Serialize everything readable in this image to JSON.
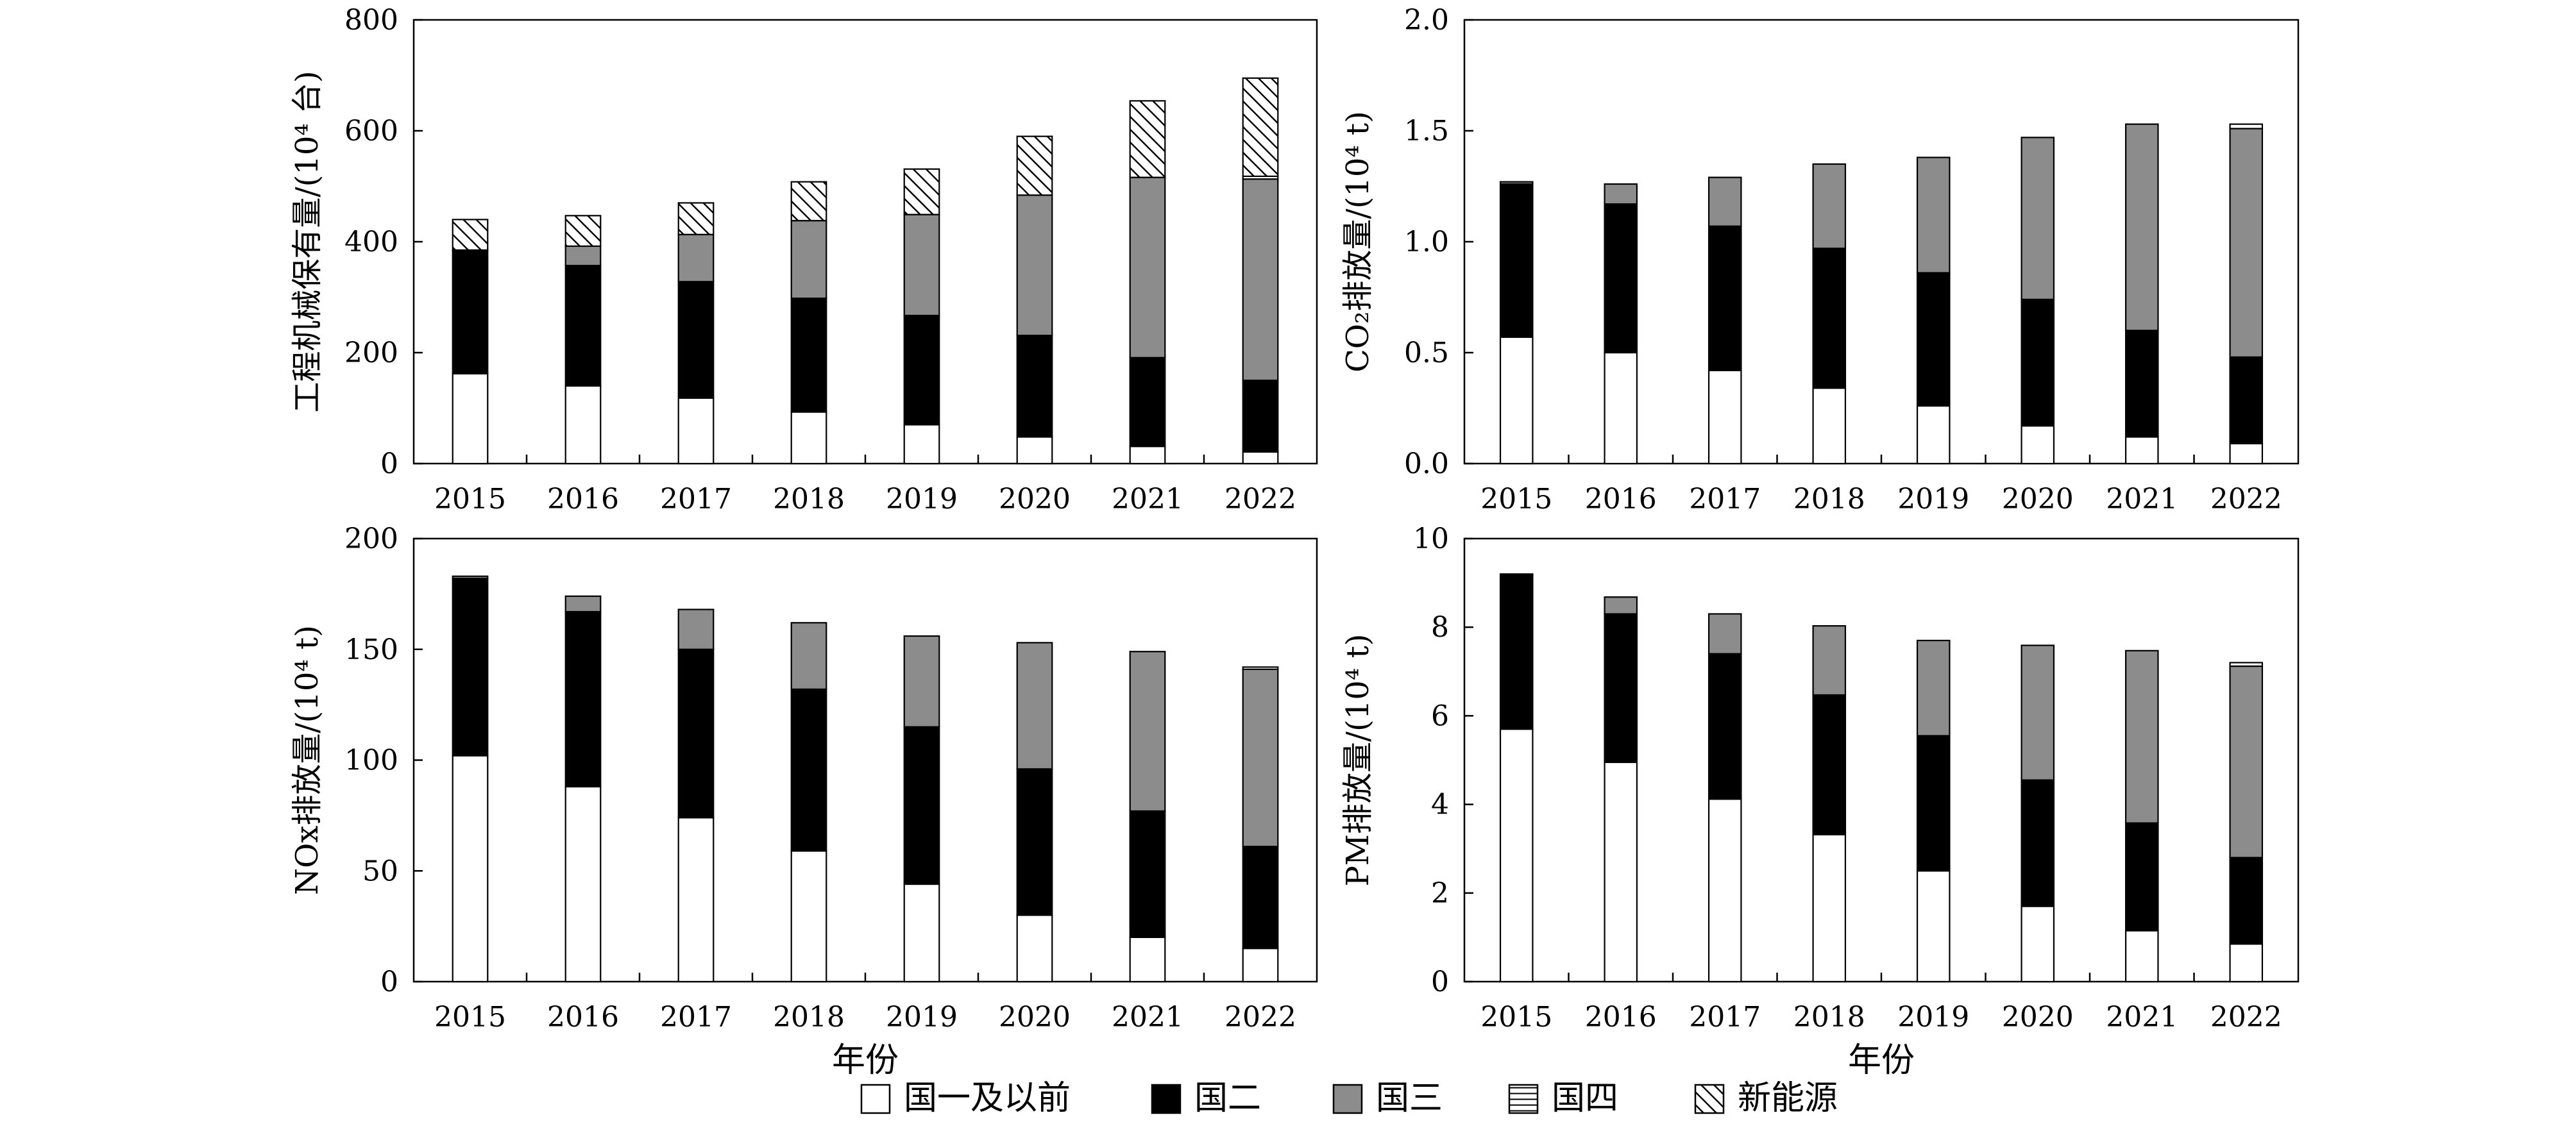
{
  "chart_data": [
    {
      "type": "bar",
      "stacked": true,
      "ylabel": "工程机械保有量/(10⁴ 台)",
      "ylim": [
        0,
        800
      ],
      "yticks": [
        "0",
        "200",
        "400",
        "600",
        "800"
      ],
      "categories": [
        "2015",
        "2016",
        "2017",
        "2018",
        "2019",
        "2020",
        "2021",
        "2022"
      ],
      "series": [
        {
          "name": "国一及以前",
          "values": [
            162,
            140,
            118,
            93,
            70,
            48,
            31,
            21
          ]
        },
        {
          "name": "国二",
          "values": [
            223,
            217,
            210,
            205,
            197,
            183,
            160,
            129
          ]
        },
        {
          "name": "国三",
          "values": [
            0,
            35,
            85,
            140,
            182,
            253,
            325,
            363
          ]
        },
        {
          "name": "国四",
          "values": [
            0,
            0,
            0,
            0,
            0,
            0,
            0,
            5
          ]
        },
        {
          "name": "新能源",
          "values": [
            55,
            55,
            57,
            70,
            82,
            106,
            138,
            177
          ]
        }
      ],
      "xlabel": ""
    },
    {
      "type": "bar",
      "stacked": true,
      "ylabel": "CO₂排放量/(10⁴ t)",
      "ylim": [
        0,
        2.0
      ],
      "yticks": [
        "0.0",
        "0.5",
        "1.0",
        "1.5",
        "2.0"
      ],
      "categories": [
        "2015",
        "2016",
        "2017",
        "2018",
        "2019",
        "2020",
        "2021",
        "2022"
      ],
      "series": [
        {
          "name": "国一及以前",
          "values": [
            0.57,
            0.5,
            0.42,
            0.34,
            0.26,
            0.17,
            0.12,
            0.09
          ]
        },
        {
          "name": "国二",
          "values": [
            0.69,
            0.67,
            0.65,
            0.63,
            0.6,
            0.57,
            0.48,
            0.39
          ]
        },
        {
          "name": "国三",
          "values": [
            0.01,
            0.09,
            0.22,
            0.38,
            0.52,
            0.73,
            0.93,
            1.03
          ]
        },
        {
          "name": "国四",
          "values": [
            0,
            0,
            0,
            0,
            0,
            0,
            0,
            0.02
          ]
        },
        {
          "name": "新能源",
          "values": [
            0,
            0,
            0,
            0,
            0,
            0,
            0,
            0
          ]
        }
      ],
      "xlabel": ""
    },
    {
      "type": "bar",
      "stacked": true,
      "ylabel": "NOx排放量/(10⁴ t)",
      "ylim": [
        0,
        200
      ],
      "yticks": [
        "0",
        "50",
        "100",
        "150",
        "200"
      ],
      "categories": [
        "2015",
        "2016",
        "2017",
        "2018",
        "2019",
        "2020",
        "2021",
        "2022"
      ],
      "series": [
        {
          "name": "国一及以前",
          "values": [
            102,
            88,
            74,
            59,
            44,
            30,
            20,
            15
          ]
        },
        {
          "name": "国二",
          "values": [
            80,
            79,
            76,
            73,
            71,
            66,
            57,
            46
          ]
        },
        {
          "name": "国三",
          "values": [
            1,
            7,
            18,
            30,
            41,
            57,
            72,
            80
          ]
        },
        {
          "name": "国四",
          "values": [
            0,
            0,
            0,
            0,
            0,
            0,
            0,
            1
          ]
        },
        {
          "name": "新能源",
          "values": [
            0,
            0,
            0,
            0,
            0,
            0,
            0,
            0
          ]
        }
      ],
      "xlabel": "年份"
    },
    {
      "type": "bar",
      "stacked": true,
      "ylabel": "PM排放量/(10⁴ t)",
      "ylim": [
        0,
        10
      ],
      "yticks": [
        "0",
        "2",
        "4",
        "6",
        "8",
        "10"
      ],
      "categories": [
        "2015",
        "2016",
        "2017",
        "2018",
        "2019",
        "2020",
        "2021",
        "2022"
      ],
      "series": [
        {
          "name": "国一及以前",
          "values": [
            5.7,
            4.95,
            4.12,
            3.32,
            2.5,
            1.7,
            1.15,
            0.85
          ]
        },
        {
          "name": "国二",
          "values": [
            3.48,
            3.35,
            3.28,
            3.15,
            3.05,
            2.85,
            2.43,
            1.95
          ]
        },
        {
          "name": "国三",
          "values": [
            0.02,
            0.38,
            0.9,
            1.56,
            2.15,
            3.04,
            3.89,
            4.32
          ]
        },
        {
          "name": "国四",
          "values": [
            0,
            0,
            0,
            0,
            0,
            0,
            0,
            0.08
          ]
        },
        {
          "name": "新能源",
          "values": [
            0,
            0,
            0,
            0,
            0,
            0,
            0,
            0
          ]
        }
      ],
      "xlabel": "年份"
    }
  ],
  "legend": [
    {
      "name": "国一及以前",
      "style": "white"
    },
    {
      "name": "国二",
      "style": "black"
    },
    {
      "name": "国三",
      "style": "gray"
    },
    {
      "name": "国四",
      "style": "hlines"
    },
    {
      "name": "新能源",
      "style": "diagonal"
    }
  ],
  "colors": {
    "国一及以前": "#ffffff",
    "国二": "#000000",
    "国三": "#8c8c8c",
    "国四": "#ffffff",
    "新能源": "#ffffff",
    "stroke": "#000000"
  }
}
